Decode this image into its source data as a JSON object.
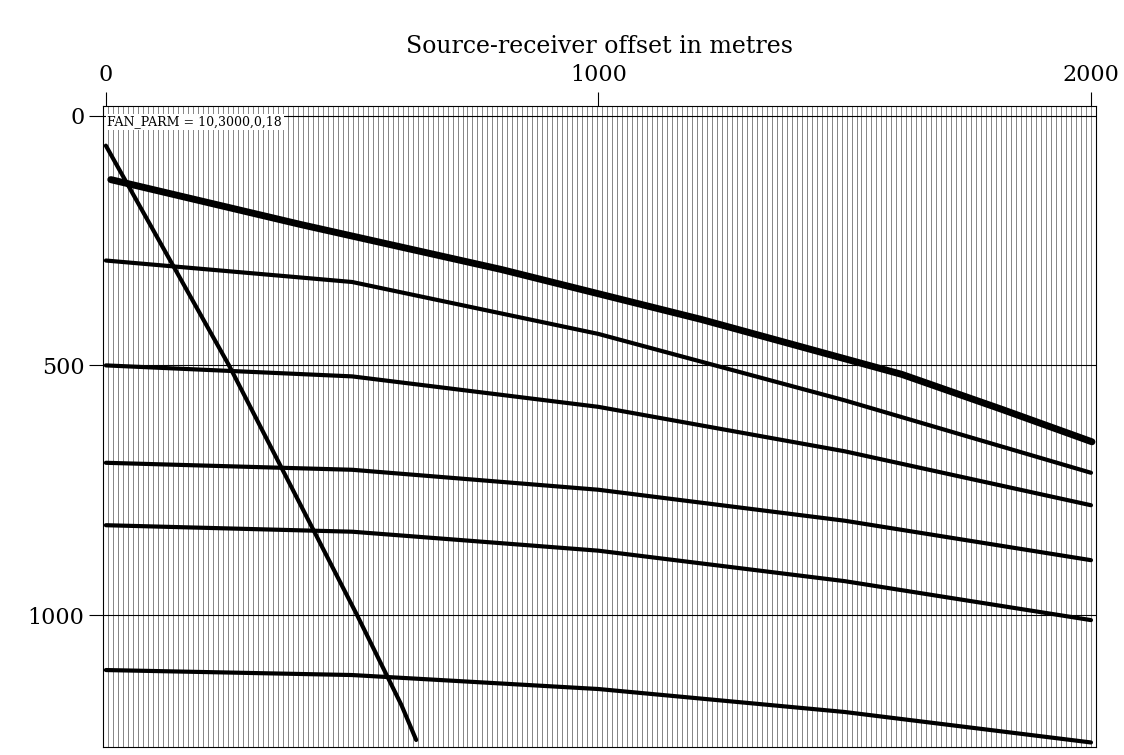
{
  "chart_data": {
    "type": "line",
    "title": "Source-receiver offset in metres",
    "annotations": [
      "FAN_PARM = 10,3000,0,18"
    ],
    "xlim": [
      -5,
      2010
    ],
    "xticks": [
      0,
      1000,
      2000
    ],
    "ylim": [
      1265,
      -20
    ],
    "yticks": [
      0,
      500,
      1000
    ],
    "grid": true,
    "series": [
      {
        "color": "#000000",
        "x": [
          0,
          250,
          380,
          510,
          600,
          630
        ],
        "values": [
          60,
          500,
          750,
          1000,
          1180,
          1250
        ]
      },
      {
        "color": "#000000",
        "x": [
          10,
          396,
          803,
          1209,
          1616,
          1819,
          2002
        ],
        "values": [
          128,
          218,
          308,
          408,
          518,
          588,
          653
        ]
      },
      {
        "color": "#000000",
        "x": [
          0,
          500,
          1000,
          1500,
          2000
        ],
        "values": [
          290,
          333,
          437,
          570,
          715
        ]
      },
      {
        "color": "#000000",
        "x": [
          0,
          500,
          1000,
          1500,
          2000
        ],
        "values": [
          500,
          522,
          583,
          672,
          780
        ]
      },
      {
        "color": "#000000",
        "x": [
          0,
          500,
          1000,
          1500,
          2000
        ],
        "values": [
          695,
          709,
          749,
          811,
          890
        ]
      },
      {
        "color": "#000000",
        "x": [
          0,
          500,
          1000,
          1500,
          2000
        ],
        "values": [
          820,
          833,
          871,
          932,
          1010
        ]
      },
      {
        "color": "#000000",
        "x": [
          0,
          500,
          1000,
          1500,
          2000
        ],
        "values": [
          1110,
          1120,
          1148,
          1194,
          1255
        ]
      }
    ]
  }
}
